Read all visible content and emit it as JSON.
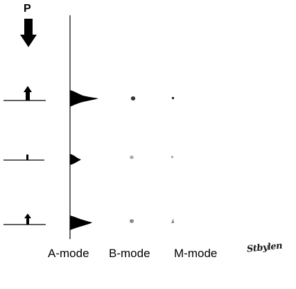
{
  "pulse_label": "P",
  "modes": {
    "a_mode": "A-mode",
    "b_mode": "B-mode",
    "m_mode": "M-mode"
  },
  "signature": "Stbylen",
  "colors": {
    "ink": "#000000",
    "dot_dark": "#333333",
    "dot_light": "#aaaaaa",
    "dot_mid": "#888888"
  },
  "reflectors": [
    {
      "name": "top",
      "echo_strength": "strong",
      "arrow": "large"
    },
    {
      "name": "middle",
      "echo_strength": "weak",
      "arrow": "small"
    },
    {
      "name": "bottom",
      "echo_strength": "strong",
      "arrow": "medium"
    }
  ]
}
